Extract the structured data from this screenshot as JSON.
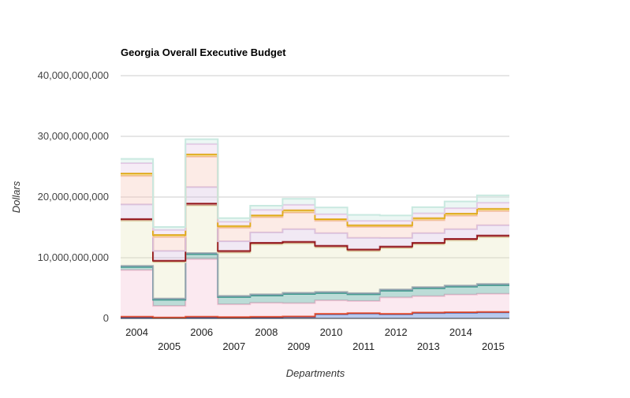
{
  "chart_data": {
    "type": "area",
    "stacked": true,
    "stepped": true,
    "title": "Georgia Overall Executive Budget",
    "xlabel": "Departments",
    "ylabel": "Dollars",
    "ylim": [
      0,
      40000000000
    ],
    "yticks": [
      "0",
      "10,000,000,000",
      "20,000,000,000",
      "30,000,000,000",
      "40,000,000,000"
    ],
    "ytick_values": [
      0,
      10000000000,
      20000000000,
      30000000000,
      40000000000
    ],
    "categories": [
      "2004",
      "2005",
      "2006",
      "2007",
      "2008",
      "2009",
      "2010",
      "2011",
      "2012",
      "2013",
      "2014",
      "2015"
    ],
    "grid": true,
    "legend": "none",
    "series": [
      {
        "color": "#3366cc",
        "values": [
          200000000,
          100000000,
          200000000,
          150000000,
          200000000,
          250000000,
          700000000,
          800000000,
          700000000,
          900000000,
          950000000,
          1000000000
        ]
      },
      {
        "color": "#dc3912",
        "values": [
          80000000,
          70000000,
          80000000,
          70000000,
          70000000,
          70000000,
          70000000,
          70000000,
          60000000,
          70000000,
          70000000,
          70000000
        ]
      },
      {
        "color": "#f4c1d4",
        "values": [
          7700000000,
          1900000000,
          9500000000,
          2100000000,
          2300000000,
          2200000000,
          2200000000,
          2000000000,
          2700000000,
          2700000000,
          2900000000,
          3000000000
        ]
      },
      {
        "color": "#3e9b8d",
        "values": [
          500000000,
          1000000000,
          800000000,
          1200000000,
          1200000000,
          1500000000,
          1200000000,
          1100000000,
          1100000000,
          1300000000,
          1300000000,
          1400000000
        ]
      },
      {
        "color": "#8a9bb0",
        "values": [
          200000000,
          200000000,
          200000000,
          200000000,
          200000000,
          200000000,
          200000000,
          200000000,
          200000000,
          200000000,
          200000000,
          200000000
        ]
      },
      {
        "color": "#e8e8bf",
        "values": [
          7400000000,
          6000000000,
          7800000000,
          7100000000,
          8200000000,
          8100000000,
          7300000000,
          6900000000,
          6800000000,
          7000000000,
          7400000000,
          7700000000
        ]
      },
      {
        "color": "#8b0000",
        "values": [
          300000000,
          250000000,
          350000000,
          300000000,
          300000000,
          300000000,
          300000000,
          300000000,
          300000000,
          300000000,
          300000000,
          300000000
        ]
      },
      {
        "color": "#d7c0e0",
        "values": [
          2400000000,
          1600000000,
          2700000000,
          1600000000,
          1700000000,
          2100000000,
          2100000000,
          1900000000,
          1400000000,
          1600000000,
          1600000000,
          1700000000
        ]
      },
      {
        "color": "#f6c6b8",
        "values": [
          4700000000,
          2300000000,
          5000000000,
          2200000000,
          2500000000,
          2700000000,
          2000000000,
          1800000000,
          1800000000,
          2100000000,
          2200000000,
          2300000000
        ]
      },
      {
        "color": "#e0a800",
        "values": [
          400000000,
          350000000,
          400000000,
          300000000,
          300000000,
          400000000,
          300000000,
          300000000,
          300000000,
          350000000,
          350000000,
          400000000
        ]
      },
      {
        "color": "#e6c8e6",
        "values": [
          1700000000,
          800000000,
          1700000000,
          700000000,
          900000000,
          900000000,
          800000000,
          700000000,
          700000000,
          800000000,
          900000000,
          1000000000
        ]
      },
      {
        "color": "#c9e9e0",
        "values": [
          700000000,
          500000000,
          800000000,
          600000000,
          700000000,
          1000000000,
          1100000000,
          1000000000,
          900000000,
          1000000000,
          1100000000,
          1200000000
        ]
      }
    ]
  }
}
